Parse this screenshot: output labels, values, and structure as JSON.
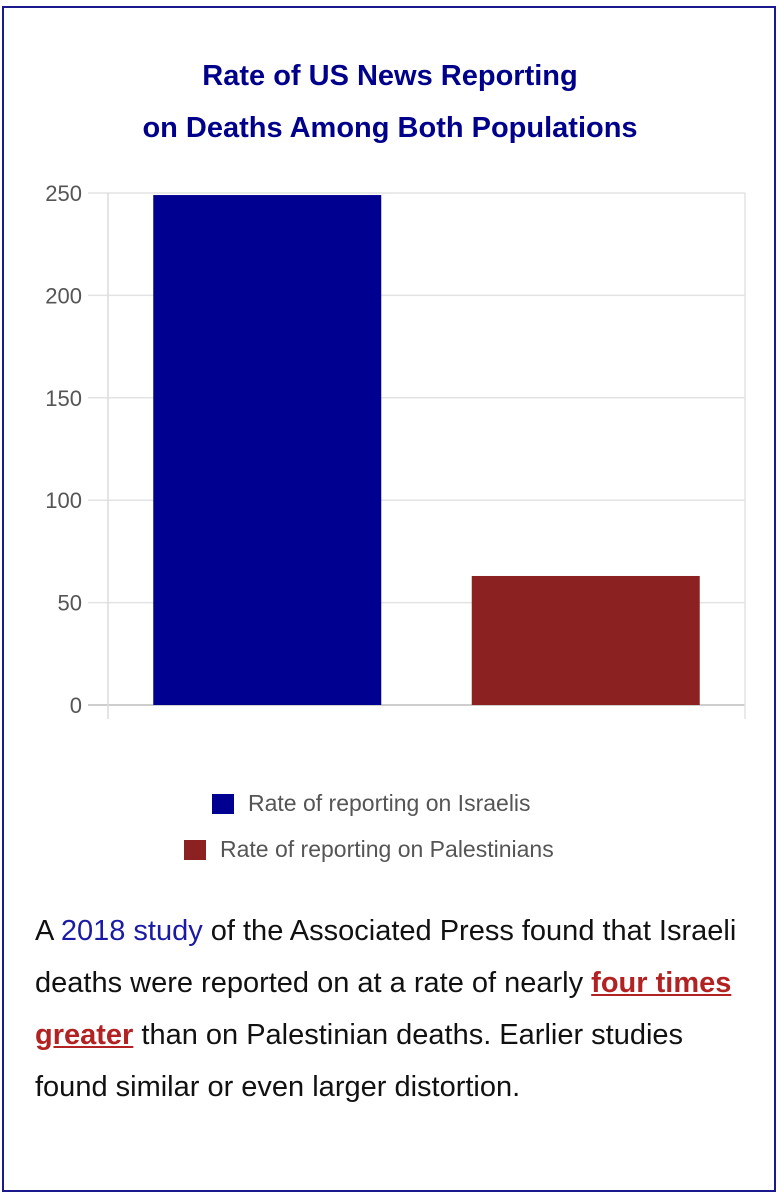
{
  "title": {
    "line1": "Rate of US News Reporting",
    "line2": "on Deaths Among Both Populations"
  },
  "chart_data": {
    "type": "bar",
    "categories": [
      "Rate of reporting on Israelis",
      "Rate of reporting on Palestinians"
    ],
    "values": [
      249,
      63
    ],
    "colors": [
      "#000090",
      "#8b2121"
    ],
    "ylim": [
      0,
      250
    ],
    "yticks": [
      0,
      50,
      100,
      150,
      200,
      250
    ],
    "grid": true,
    "legend_position": "bottom"
  },
  "legend": {
    "items": [
      {
        "label": "Rate of reporting on Israelis",
        "color": "#000090"
      },
      {
        "label": "Rate of reporting on Palestinians",
        "color": "#8b2121"
      }
    ]
  },
  "caption": {
    "prefix": "A ",
    "link": "2018 study",
    "text1": " of the Associated Press found that Israeli deaths were reported on at a rate of nearly ",
    "emphasis": "four times greater",
    "text2": " than on Palestinian deaths. Earlier studies found similar or even larger distortion."
  },
  "colors": {
    "title": "#00008b",
    "link": "#1a1aa6",
    "emphasis": "#b22222",
    "border": "#1a1a8c"
  }
}
